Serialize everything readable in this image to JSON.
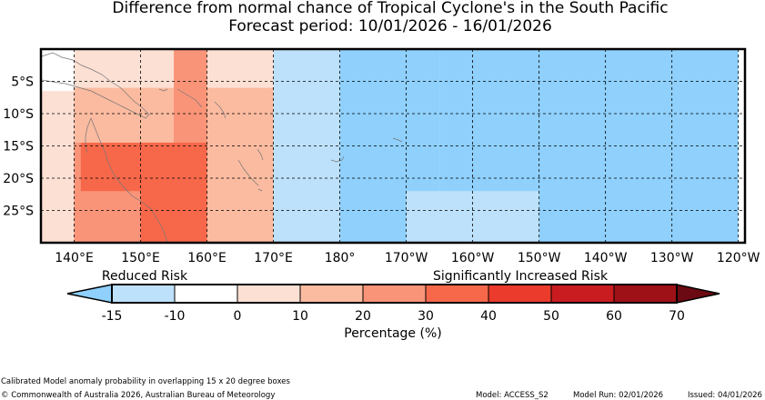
{
  "title_line1": "Difference from normal chance of Tropical Cyclone's in the South Pacific",
  "title_line2": "Forecast period: 10/01/2026 - 16/01/2026",
  "map": {
    "lat_ticks": [
      "5°S",
      "10°S",
      "15°S",
      "20°S",
      "25°S"
    ],
    "lon_ticks": [
      "140°E",
      "150°E",
      "160°E",
      "170°E",
      "180°",
      "170°W",
      "160°W",
      "150°W",
      "140°W",
      "130°W",
      "120°W"
    ],
    "grid": "dashed",
    "cells": [
      {
        "lon": [
          135,
          140
        ],
        "lat": [
          0,
          -6.5
        ],
        "pct": 0
      },
      {
        "lon": [
          135,
          140
        ],
        "lat": [
          -6.5,
          -30
        ],
        "pct": 5
      },
      {
        "lon": [
          140,
          160
        ],
        "lat": [
          0,
          -30
        ],
        "pct": 5
      },
      {
        "lon": [
          140,
          160
        ],
        "lat": [
          -6,
          -30
        ],
        "pct": 15
      },
      {
        "lon": [
          140,
          160
        ],
        "lat": [
          -14.5,
          -30
        ],
        "pct": 25
      },
      {
        "lon": [
          155,
          170
        ],
        "lat": [
          0,
          -30
        ],
        "pct": 15
      },
      {
        "lon": [
          160,
          170
        ],
        "lat": [
          0,
          -6
        ],
        "pct": 5
      },
      {
        "lon": [
          155,
          160
        ],
        "lat": [
          0,
          -30
        ],
        "pct": 25
      },
      {
        "lon": [
          141,
          155
        ],
        "lat": [
          -14.5,
          -22
        ],
        "pct": 35
      },
      {
        "lon": [
          150,
          160
        ],
        "lat": [
          -14.5,
          -30
        ],
        "pct": 35
      },
      {
        "lon": [
          170,
          180
        ],
        "lat": [
          0,
          -30
        ],
        "pct": -10
      },
      {
        "lon": [
          180,
          195
        ],
        "lat": [
          0,
          -30
        ],
        "pct": -20
      },
      {
        "lon": [
          195,
          240
        ],
        "lat": [
          0,
          -30
        ],
        "pct": -20
      },
      {
        "lon": [
          190,
          210
        ],
        "lat": [
          -22,
          -30
        ],
        "pct": -10
      }
    ]
  },
  "legend": {
    "left_label": "Reduced Risk",
    "right_label": "Significantly Increased Risk",
    "ticks": [
      "-15",
      "-10",
      "0",
      "10",
      "20",
      "30",
      "40",
      "50",
      "60",
      "70"
    ],
    "xlabel": "Percentage (%)",
    "colors": [
      "#bde1fa",
      "#ffffff",
      "#fde0d4",
      "#fbbba0",
      "#f99478",
      "#f7684a",
      "#ea3b2c",
      "#c91c20",
      "#9e1117"
    ],
    "under_color": "#8fd0fc",
    "over_color": "#6b0a12"
  },
  "footer": {
    "note": "Calibrated Model anomaly probability in overlapping 15 x 20 degree boxes",
    "copyright": "© Commonwealth of Australia 2026, Australian Bureau of Meteorology",
    "model": "Model: ACCESS_S2",
    "run": "Model Run: 02/01/2026",
    "issued": "Issued: 04/01/2026"
  }
}
